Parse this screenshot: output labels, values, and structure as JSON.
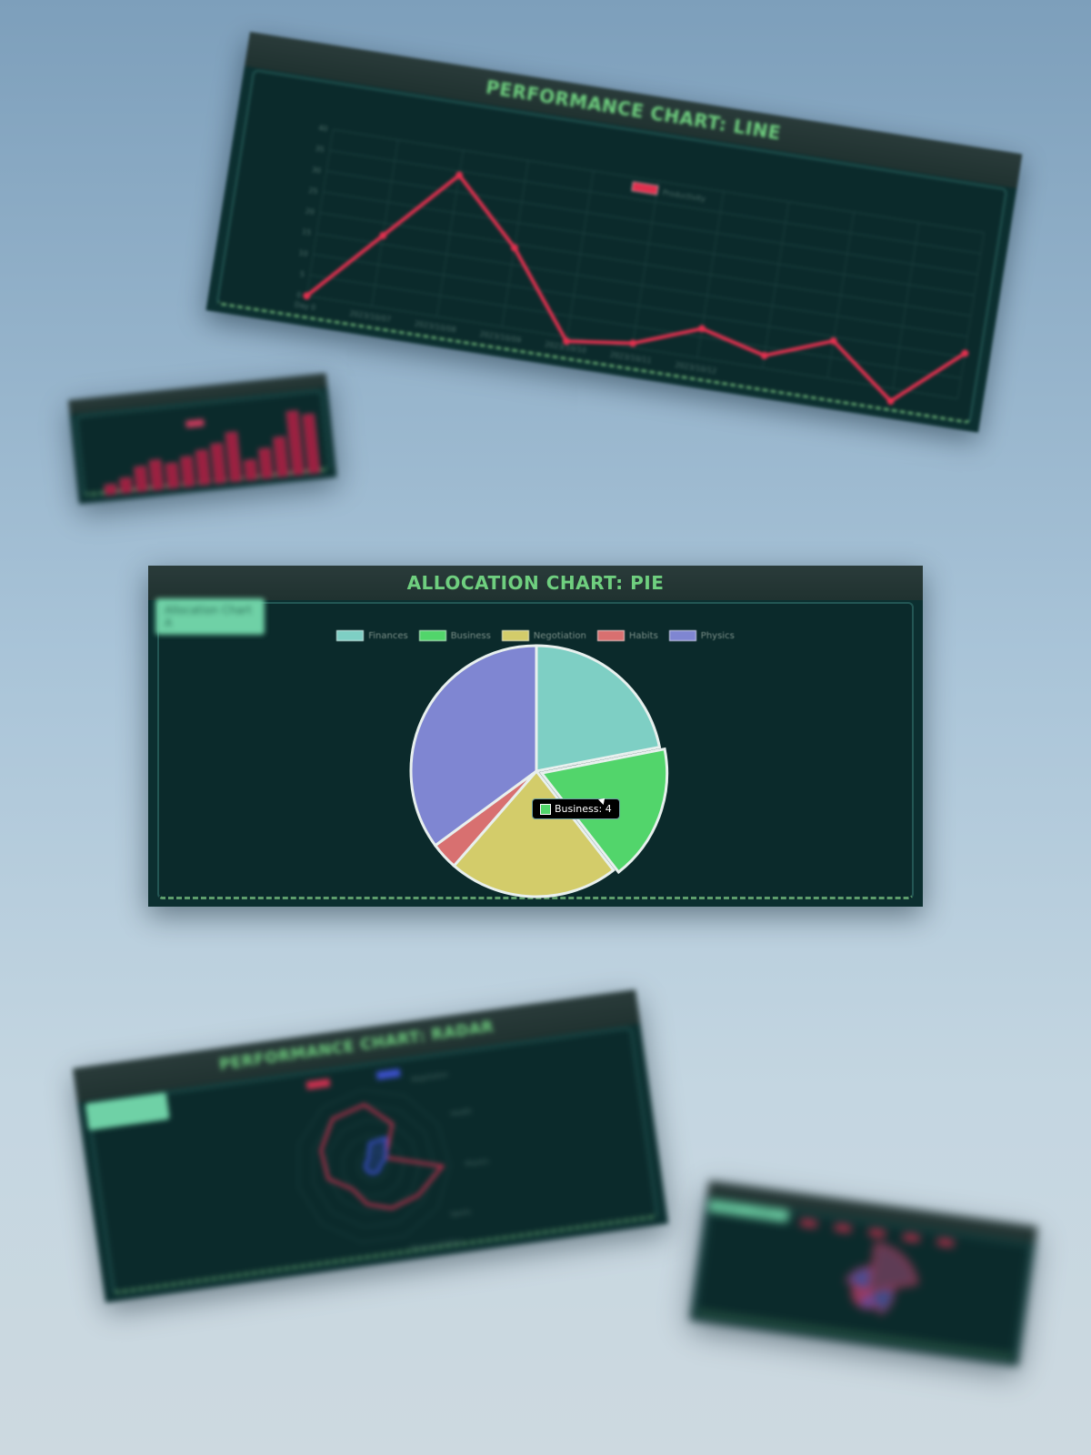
{
  "background": {
    "top": "#7d9fbb",
    "bottom": "#cdd9e0"
  },
  "windows": {
    "performance": {
      "title": "PERFORMANCE CHART: LINE",
      "legend_label": "Productivity",
      "line_color": "#e0304e"
    },
    "bar_mini": {
      "badge": "",
      "bar_color": "#9a2040"
    },
    "allocation": {
      "title": "ALLOCATION CHART: PIE",
      "badge": "Allocation Chart A",
      "tooltip": "Business: 4",
      "legend": [
        {
          "label": "Finances",
          "color": "#7ecfc4"
        },
        {
          "label": "Business",
          "color": "#52d56b"
        },
        {
          "label": "Negotiation",
          "color": "#d3cc6a"
        },
        {
          "label": "Habits",
          "color": "#d87070"
        },
        {
          "label": "Physics",
          "color": "#7f86d2"
        }
      ]
    },
    "radar": {
      "title": "PERFORMANCE CHART: RADAR",
      "badge": "",
      "legend_a": "",
      "legend_b": ""
    },
    "polar": {
      "title": "",
      "badge": "SELECT CHART A"
    }
  },
  "chart_data": [
    {
      "type": "line",
      "title": "PERFORMANCE CHART: LINE",
      "series": [
        {
          "name": "Productivity",
          "values": [
            0,
            17,
            34,
            19,
            -1,
            1,
            7,
            3,
            9,
            -3,
            11
          ]
        }
      ],
      "categories": [
        "Day 0",
        "2023/10/07",
        "2023/10/08",
        "2023/10/09",
        "2023/10/10",
        "2023/10/11",
        "2023/10/12",
        "",
        "",
        "",
        ""
      ],
      "y_ticks": [
        0,
        5,
        10,
        15,
        20,
        25,
        30,
        35,
        40
      ],
      "ylim": [
        0,
        40
      ]
    },
    {
      "type": "bar",
      "values": [
        2,
        3,
        5,
        6,
        5,
        6,
        7,
        8,
        10,
        4,
        6,
        8,
        13,
        12
      ]
    },
    {
      "type": "pie",
      "title": "ALLOCATION CHART: PIE",
      "categories": [
        "Finances",
        "Business",
        "Negotiation",
        "Habits",
        "Physics"
      ],
      "values": [
        5,
        4,
        5,
        0.8,
        8
      ]
    },
    {
      "type": "radar",
      "title": "PERFORMANCE CHART: RADAR",
      "axes": [
        "",
        "Negotiation",
        "Health",
        "Physics",
        "Sports",
        "Financial Politics",
        "",
        "",
        "",
        "",
        ""
      ],
      "series": [
        {
          "values": [
            8,
            6,
            2,
            9,
            7,
            6,
            5,
            4,
            6,
            7,
            8
          ]
        },
        {
          "values": [
            3,
            4,
            2,
            1,
            1,
            1,
            1,
            1,
            1,
            1,
            1
          ]
        }
      ]
    },
    {
      "type": "pie",
      "values": [
        6,
        3,
        2,
        2,
        3
      ]
    }
  ]
}
